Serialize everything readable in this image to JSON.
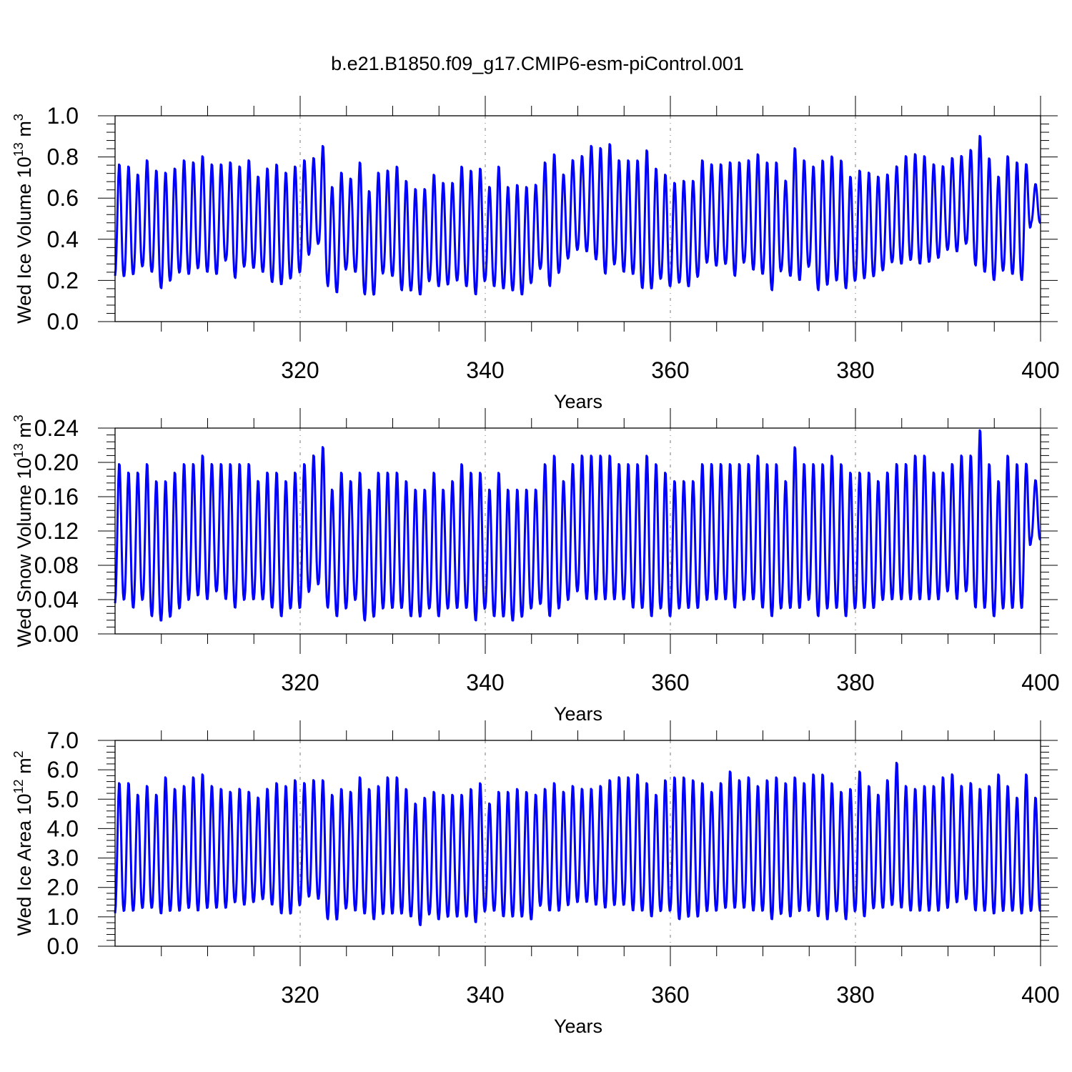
{
  "figure": {
    "title": "b.e21.B1850.f09_g17.CMIP6-esm-piControl.001"
  },
  "chart_data": [
    {
      "type": "line",
      "ylabel": "Wed Ice Volume 10",
      "ylabel_sup": "13",
      "ylabel_unit": " m",
      "ylabel_unit_sup": "3",
      "xlabel": "Years",
      "xlim": [
        300,
        400
      ],
      "ylim": [
        0.0,
        1.0
      ],
      "x_ticks": [
        320,
        340,
        360,
        380,
        400
      ],
      "x_tick_labels": [
        "320",
        "340",
        "360",
        "380",
        "400"
      ],
      "y_ticks": [
        0.0,
        0.2,
        0.4,
        0.6,
        0.8,
        1.0
      ],
      "y_tick_labels": [
        "0.0",
        "0.2",
        "0.4",
        "0.6",
        "0.8",
        "1.0"
      ],
      "grid": "vertical dashed at major x ticks",
      "series": [
        {
          "color": "#0000ff",
          "x_start": 300,
          "x_end": 400,
          "cycle_years": 1,
          "annual_max": [
            0.77,
            0.76,
            0.72,
            0.79,
            0.74,
            0.73,
            0.75,
            0.79,
            0.78,
            0.81,
            0.77,
            0.77,
            0.78,
            0.76,
            0.79,
            0.71,
            0.75,
            0.77,
            0.73,
            0.76,
            0.79,
            0.8,
            0.86,
            0.66,
            0.73,
            0.7,
            0.78,
            0.64,
            0.73,
            0.74,
            0.76,
            0.69,
            0.65,
            0.65,
            0.72,
            0.68,
            0.68,
            0.76,
            0.74,
            0.75,
            0.66,
            0.76,
            0.66,
            0.67,
            0.66,
            0.67,
            0.78,
            0.82,
            0.72,
            0.79,
            0.81,
            0.86,
            0.85,
            0.87,
            0.79,
            0.79,
            0.79,
            0.84,
            0.75,
            0.72,
            0.68,
            0.69,
            0.69,
            0.79,
            0.77,
            0.77,
            0.78,
            0.78,
            0.79,
            0.82,
            0.78,
            0.78,
            0.69,
            0.85,
            0.79,
            0.76,
            0.79,
            0.81,
            0.79,
            0.71,
            0.74,
            0.73,
            0.71,
            0.72,
            0.76,
            0.81,
            0.82,
            0.81,
            0.77,
            0.76,
            0.8,
            0.81,
            0.84,
            0.91,
            0.8,
            0.71,
            0.81,
            0.78,
            0.77,
            0.67
          ],
          "annual_min": [
            0.22,
            0.22,
            0.23,
            0.27,
            0.24,
            0.16,
            0.2,
            0.24,
            0.23,
            0.26,
            0.24,
            0.23,
            0.3,
            0.21,
            0.27,
            0.26,
            0.24,
            0.19,
            0.18,
            0.21,
            0.24,
            0.33,
            0.38,
            0.17,
            0.14,
            0.26,
            0.24,
            0.13,
            0.13,
            0.24,
            0.22,
            0.15,
            0.15,
            0.13,
            0.2,
            0.17,
            0.18,
            0.2,
            0.17,
            0.13,
            0.2,
            0.17,
            0.16,
            0.15,
            0.13,
            0.19,
            0.26,
            0.17,
            0.24,
            0.31,
            0.35,
            0.34,
            0.3,
            0.23,
            0.28,
            0.24,
            0.23,
            0.16,
            0.16,
            0.21,
            0.17,
            0.19,
            0.17,
            0.22,
            0.29,
            0.27,
            0.28,
            0.22,
            0.29,
            0.25,
            0.23,
            0.15,
            0.25,
            0.22,
            0.2,
            0.27,
            0.15,
            0.18,
            0.2,
            0.16,
            0.2,
            0.21,
            0.22,
            0.25,
            0.29,
            0.28,
            0.3,
            0.28,
            0.29,
            0.31,
            0.35,
            0.34,
            0.38,
            0.27,
            0.24,
            0.2,
            0.25,
            0.23,
            0.2,
            0.48
          ]
        }
      ]
    },
    {
      "type": "line",
      "ylabel": "Wed Snow Volume 10",
      "ylabel_sup": "13",
      "ylabel_unit": " m",
      "ylabel_unit_sup": "3",
      "xlabel": "Years",
      "xlim": [
        300,
        400
      ],
      "ylim": [
        0.0,
        0.24
      ],
      "x_ticks": [
        320,
        340,
        360,
        380,
        400
      ],
      "x_tick_labels": [
        "320",
        "340",
        "360",
        "380",
        "400"
      ],
      "y_ticks": [
        0.0,
        0.04,
        0.08,
        0.12,
        0.16,
        0.2,
        0.24
      ],
      "y_tick_labels": [
        "0.00",
        "0.04",
        "0.08",
        "0.12",
        "0.16",
        "0.20",
        "0.24"
      ],
      "grid": "vertical dashed at major x ticks",
      "series": [
        {
          "color": "#0000ff",
          "x_start": 300,
          "x_end": 400,
          "cycle_years": 1,
          "annual_max": [
            0.2,
            0.19,
            0.19,
            0.2,
            0.18,
            0.18,
            0.19,
            0.2,
            0.2,
            0.21,
            0.2,
            0.2,
            0.2,
            0.2,
            0.2,
            0.18,
            0.19,
            0.19,
            0.18,
            0.19,
            0.2,
            0.21,
            0.22,
            0.17,
            0.19,
            0.18,
            0.19,
            0.17,
            0.19,
            0.19,
            0.19,
            0.18,
            0.17,
            0.17,
            0.19,
            0.17,
            0.18,
            0.2,
            0.19,
            0.19,
            0.17,
            0.19,
            0.17,
            0.17,
            0.17,
            0.17,
            0.2,
            0.21,
            0.18,
            0.2,
            0.21,
            0.21,
            0.21,
            0.21,
            0.2,
            0.2,
            0.2,
            0.21,
            0.2,
            0.19,
            0.18,
            0.18,
            0.18,
            0.2,
            0.2,
            0.2,
            0.2,
            0.2,
            0.2,
            0.21,
            0.2,
            0.2,
            0.18,
            0.22,
            0.2,
            0.2,
            0.2,
            0.21,
            0.2,
            0.19,
            0.19,
            0.19,
            0.18,
            0.19,
            0.2,
            0.2,
            0.21,
            0.21,
            0.19,
            0.19,
            0.2,
            0.21,
            0.21,
            0.24,
            0.2,
            0.18,
            0.21,
            0.2,
            0.2,
            0.18
          ],
          "annual_min": [
            0.035,
            0.04,
            0.03,
            0.04,
            0.02,
            0.015,
            0.02,
            0.03,
            0.04,
            0.045,
            0.04,
            0.05,
            0.04,
            0.03,
            0.04,
            0.04,
            0.04,
            0.03,
            0.02,
            0.03,
            0.03,
            0.05,
            0.058,
            0.03,
            0.02,
            0.03,
            0.04,
            0.015,
            0.02,
            0.03,
            0.03,
            0.03,
            0.02,
            0.02,
            0.03,
            0.02,
            0.03,
            0.03,
            0.03,
            0.015,
            0.03,
            0.02,
            0.02,
            0.015,
            0.02,
            0.03,
            0.035,
            0.02,
            0.03,
            0.04,
            0.05,
            0.04,
            0.04,
            0.04,
            0.04,
            0.04,
            0.03,
            0.03,
            0.02,
            0.03,
            0.02,
            0.03,
            0.03,
            0.03,
            0.04,
            0.04,
            0.04,
            0.03,
            0.04,
            0.04,
            0.03,
            0.02,
            0.03,
            0.03,
            0.03,
            0.04,
            0.02,
            0.03,
            0.03,
            0.02,
            0.03,
            0.03,
            0.03,
            0.04,
            0.04,
            0.04,
            0.04,
            0.04,
            0.04,
            0.04,
            0.05,
            0.04,
            0.05,
            0.03,
            0.03,
            0.02,
            0.03,
            0.03,
            0.03,
            0.11
          ]
        }
      ]
    },
    {
      "type": "line",
      "ylabel": "Wed Ice Area 10",
      "ylabel_sup": "12",
      "ylabel_unit": " m",
      "ylabel_unit_sup": "2",
      "xlabel": "Years",
      "xlim": [
        300,
        400
      ],
      "ylim": [
        0.0,
        7.0
      ],
      "x_ticks": [
        320,
        340,
        360,
        380,
        400
      ],
      "x_tick_labels": [
        "320",
        "340",
        "360",
        "380",
        "400"
      ],
      "y_ticks": [
        0.0,
        1.0,
        2.0,
        3.0,
        4.0,
        5.0,
        6.0,
        7.0
      ],
      "y_tick_labels": [
        "0.0",
        "1.0",
        "2.0",
        "3.0",
        "4.0",
        "5.0",
        "6.0",
        "7.0"
      ],
      "grid": "vertical dashed at major x ticks",
      "series": [
        {
          "color": "#0000ff",
          "x_start": 300,
          "x_end": 400,
          "cycle_years": 1,
          "annual_max": [
            5.6,
            5.6,
            5.2,
            5.5,
            5.2,
            5.8,
            5.4,
            5.5,
            5.8,
            5.9,
            5.5,
            5.4,
            5.3,
            5.4,
            5.3,
            5.1,
            5.4,
            5.6,
            5.5,
            5.7,
            5.6,
            5.7,
            5.7,
            5.2,
            5.4,
            5.3,
            5.8,
            5.4,
            5.5,
            5.8,
            5.8,
            5.4,
            4.9,
            5.1,
            5.3,
            5.2,
            5.2,
            5.2,
            5.4,
            5.6,
            4.9,
            5.3,
            5.3,
            5.4,
            5.3,
            5.2,
            5.4,
            5.6,
            5.3,
            5.5,
            5.4,
            5.4,
            5.5,
            5.7,
            5.8,
            5.8,
            5.9,
            5.6,
            5.2,
            5.7,
            5.8,
            5.8,
            5.7,
            5.6,
            5.3,
            5.6,
            6.0,
            5.7,
            5.8,
            5.5,
            5.7,
            5.8,
            5.6,
            5.8,
            5.6,
            5.9,
            5.9,
            5.6,
            5.3,
            5.4,
            6.0,
            5.5,
            5.2,
            5.7,
            6.3,
            5.5,
            5.4,
            5.5,
            5.5,
            5.8,
            5.9,
            5.5,
            5.6,
            5.4,
            5.5,
            5.9,
            5.5,
            5.1,
            5.9,
            5.1
          ],
          "annual_min": [
            1.1,
            1.2,
            1.2,
            1.3,
            1.3,
            1.1,
            1.2,
            1.2,
            1.3,
            1.2,
            1.3,
            1.3,
            1.3,
            1.5,
            1.4,
            1.5,
            1.6,
            1.4,
            1.1,
            1.1,
            1.4,
            1.7,
            1.6,
            0.9,
            0.9,
            1.3,
            1.2,
            1.1,
            0.9,
            1.1,
            1.1,
            1.1,
            1.0,
            0.7,
            1.1,
            0.9,
            1.0,
            1.0,
            1.0,
            0.8,
            1.2,
            1.2,
            1.0,
            1.0,
            1.0,
            0.9,
            1.4,
            1.2,
            1.2,
            1.4,
            1.5,
            1.5,
            1.4,
            1.3,
            1.4,
            1.4,
            1.2,
            1.2,
            1.0,
            1.2,
            1.2,
            0.9,
            1.0,
            1.0,
            1.2,
            1.2,
            1.3,
            1.3,
            1.3,
            1.2,
            1.2,
            0.9,
            1.1,
            1.0,
            1.2,
            1.2,
            1.0,
            0.9,
            1.2,
            0.9,
            1.2,
            1.0,
            1.3,
            1.3,
            1.4,
            1.3,
            1.2,
            1.2,
            1.2,
            1.2,
            1.3,
            1.5,
            1.6,
            1.2,
            1.2,
            1.1,
            1.2,
            1.2,
            1.1,
            1.2
          ]
        }
      ]
    }
  ]
}
